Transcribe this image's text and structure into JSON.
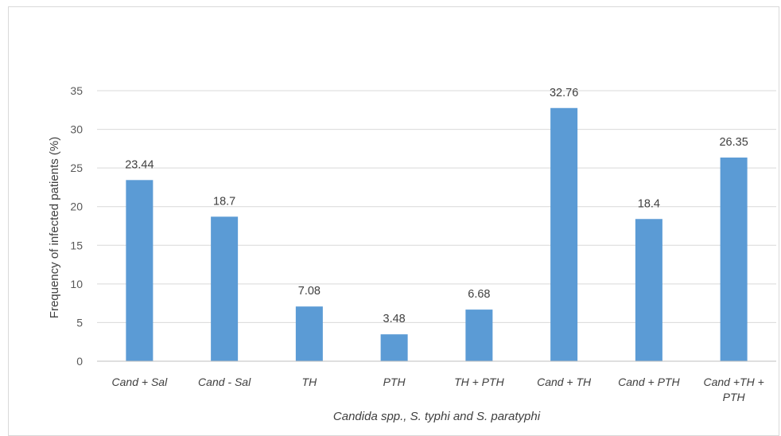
{
  "chart_data": {
    "type": "bar",
    "title": "",
    "xlabel": "Candida spp., S. typhi and S. paratyphi",
    "ylabel": "Frequency of infected patients (%)",
    "ylim": [
      0,
      35
    ],
    "yticks": [
      0,
      5,
      10,
      15,
      20,
      25,
      30,
      35
    ],
    "grid": true,
    "legend": "none",
    "categories": [
      [
        "Cand + Sal"
      ],
      [
        "Cand - Sal"
      ],
      [
        "TH"
      ],
      [
        "PTH"
      ],
      [
        "TH + PTH"
      ],
      [
        "Cand + TH"
      ],
      [
        "Cand + PTH"
      ],
      [
        "Cand +TH +",
        "PTH"
      ]
    ],
    "values": [
      23.44,
      18.7,
      7.08,
      3.48,
      6.68,
      32.76,
      18.4,
      26.35
    ],
    "data_labels": [
      "23.44",
      "18.7",
      "7.08",
      "3.48",
      "6.68",
      "32.76",
      "18.4",
      "26.35"
    ],
    "colors": {
      "bar": "#5b9bd5",
      "grid": "#d9d9d9",
      "axis": "#bfbfbf"
    }
  }
}
